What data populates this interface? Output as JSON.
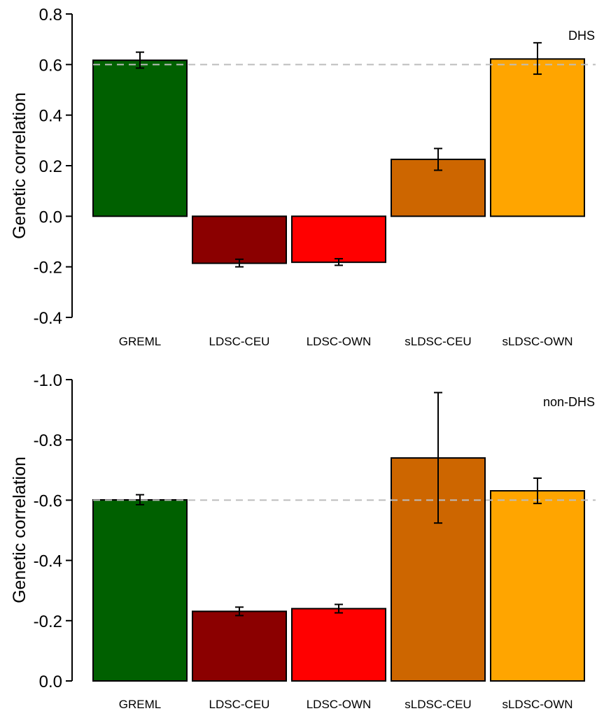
{
  "chart_data": [
    {
      "type": "bar",
      "annotation": "DHS",
      "ylabel": "Genetic correlation",
      "categories": [
        "GREML",
        "LDSC-CEU",
        "LDSC-OWN",
        "sLDSC-CEU",
        "sLDSC-OWN"
      ],
      "values": [
        0.617,
        -0.186,
        -0.182,
        0.225,
        0.622
      ],
      "error_low": [
        0.586,
        -0.2,
        -0.194,
        0.182,
        0.562
      ],
      "error_high": [
        0.649,
        -0.17,
        -0.168,
        0.268,
        0.686
      ],
      "colors": [
        "#006000",
        "#8b0000",
        "#ff0000",
        "#cd6600",
        "#ffa500"
      ],
      "reference_line": 0.6,
      "ylim": [
        -0.4,
        0.8
      ],
      "ticks": [
        0.8,
        0.6,
        0.4,
        0.2,
        0.0,
        -0.2,
        -0.4
      ],
      "tick_labels": [
        "0.8",
        "0.6",
        "0.4",
        "0.2",
        "0.0",
        "-0.2",
        "-0.4"
      ],
      "grid": false
    },
    {
      "type": "bar",
      "annotation": "non-DHS",
      "ylabel": "Genetic correlation",
      "categories": [
        "GREML",
        "LDSC-CEU",
        "LDSC-OWN",
        "sLDSC-CEU",
        "sLDSC-OWN"
      ],
      "values": [
        -0.601,
        -0.231,
        -0.24,
        -0.74,
        -0.631
      ],
      "error_low": [
        -0.585,
        -0.217,
        -0.226,
        -0.524,
        -0.589
      ],
      "error_high": [
        -0.618,
        -0.245,
        -0.254,
        -0.957,
        -0.673
      ],
      "colors": [
        "#006000",
        "#8b0000",
        "#ff0000",
        "#cd6600",
        "#ffa500"
      ],
      "reference_line": -0.6,
      "ylim": [
        -1.0,
        0.0
      ],
      "ticks": [
        -1.0,
        -0.8,
        -0.6,
        -0.4,
        -0.2,
        0.0
      ],
      "tick_labels": [
        "-1.0",
        "-0.8",
        "-0.6",
        "-0.4",
        "-0.2",
        "0.0"
      ],
      "grid": false,
      "y_reversed": true
    }
  ]
}
